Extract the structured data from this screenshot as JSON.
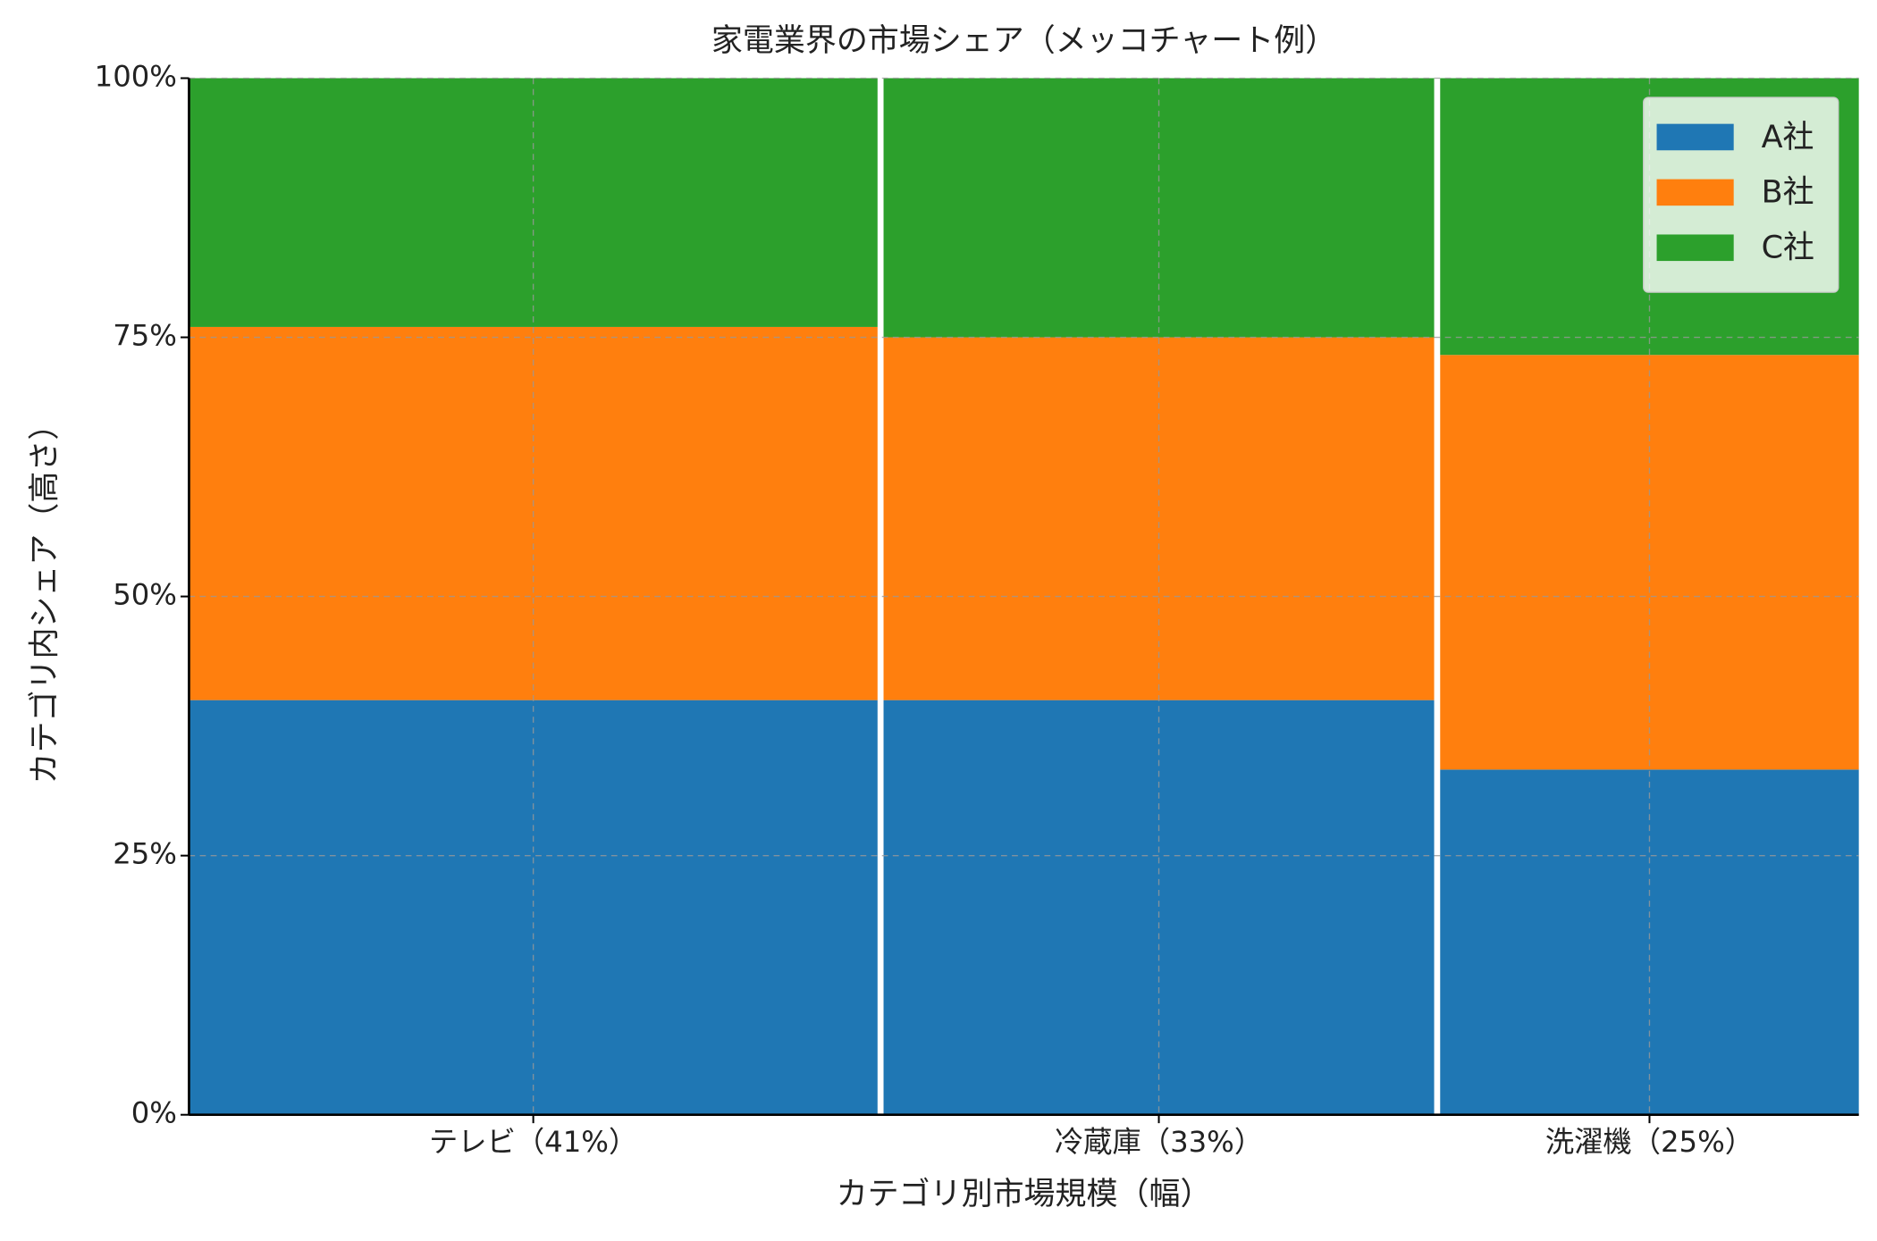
{
  "chart_data": {
    "type": "mekko",
    "title": "家電業界の市場シェア（メッコチャート例）",
    "x_label": "カテゴリ別市場規模（幅）",
    "y_label": "カテゴリ内シェア（高さ）",
    "categories": [
      "テレビ（41%）",
      "冷蔵庫（33%）",
      "洗濯機（25%）"
    ],
    "widths": [
      41,
      33,
      25
    ],
    "series": [
      {
        "name": "A社",
        "color": "#1f77b4",
        "values": [
          40,
          40,
          33.3
        ]
      },
      {
        "name": "B社",
        "color": "#ff7f0e",
        "values": [
          36,
          35,
          40
        ]
      },
      {
        "name": "C社",
        "color": "#2ca02c",
        "values": [
          24,
          25,
          26.7
        ]
      }
    ],
    "ylim": [
      0,
      100
    ],
    "yticks": [
      {
        "value": 0,
        "label": "0%"
      },
      {
        "value": 25,
        "label": "25%"
      },
      {
        "value": 50,
        "label": "50%"
      },
      {
        "value": 75,
        "label": "75%"
      },
      {
        "value": 100,
        "label": "100%"
      }
    ],
    "grid": true,
    "legend": "upper right"
  }
}
